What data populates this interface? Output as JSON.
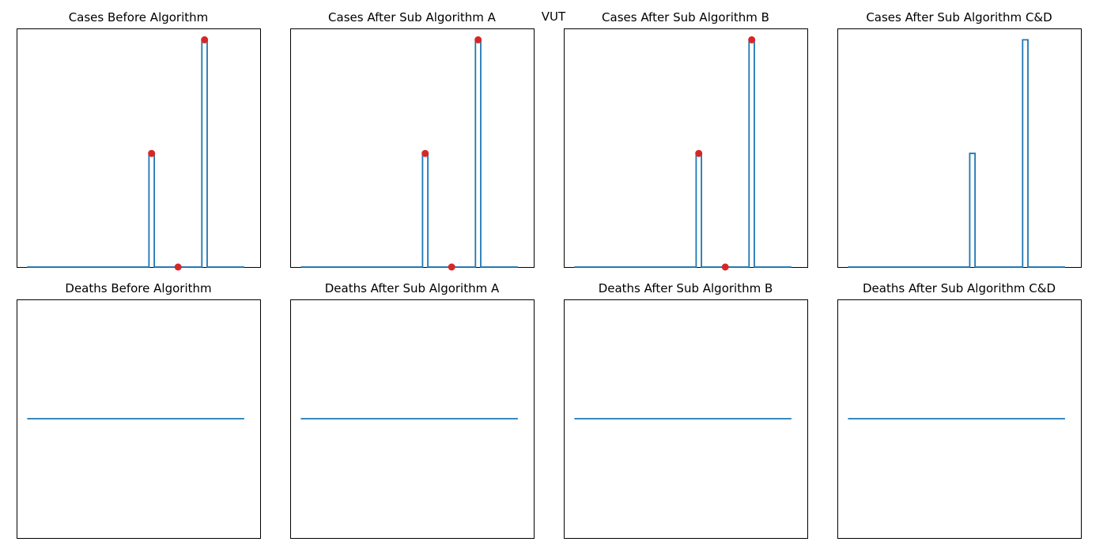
{
  "suptitle": "VUT",
  "colors": {
    "line": "#1f77b4",
    "marker": "#d62728",
    "frame": "#000000"
  },
  "chart_data": [
    {
      "type": "line",
      "title": "Cases Before Algorithm",
      "ylim": [
        0,
        1.05
      ],
      "xlim": [
        -2,
        44
      ],
      "x": [
        0,
        23,
        23,
        24,
        24,
        33,
        33,
        34,
        34,
        41
      ],
      "y": [
        0,
        0,
        0.5,
        0.5,
        0,
        0,
        1,
        1,
        0,
        0
      ],
      "markers": {
        "x": [
          23.5,
          28.5,
          33.5
        ],
        "y": [
          0.5,
          0,
          1
        ]
      }
    },
    {
      "type": "line",
      "title": "Cases After Sub Algorithm A",
      "ylim": [
        0,
        1.05
      ],
      "xlim": [
        -2,
        44
      ],
      "x": [
        0,
        23,
        23,
        24,
        24,
        33,
        33,
        34,
        34,
        41
      ],
      "y": [
        0,
        0,
        0.5,
        0.5,
        0,
        0,
        1,
        1,
        0,
        0
      ],
      "markers": {
        "x": [
          23.5,
          28.5,
          33.5
        ],
        "y": [
          0.5,
          0,
          1
        ]
      }
    },
    {
      "type": "line",
      "title": "Cases After Sub Algorithm B",
      "ylim": [
        0,
        1.05
      ],
      "xlim": [
        -2,
        44
      ],
      "x": [
        0,
        23,
        23,
        24,
        24,
        33,
        33,
        34,
        34,
        41
      ],
      "y": [
        0,
        0,
        0.5,
        0.5,
        0,
        0,
        1,
        1,
        0,
        0
      ],
      "markers": {
        "x": [
          23.5,
          28.5,
          33.5
        ],
        "y": [
          0.5,
          0,
          1
        ]
      }
    },
    {
      "type": "line",
      "title": "Cases After Sub Algorithm C&D",
      "ylim": [
        0,
        1.05
      ],
      "xlim": [
        -2,
        44
      ],
      "x": [
        0,
        23,
        23,
        24,
        24,
        33,
        33,
        34,
        34,
        41
      ],
      "y": [
        0,
        0,
        0.5,
        0.5,
        0,
        0,
        1,
        1,
        0,
        0
      ],
      "markers": {
        "x": [],
        "y": []
      }
    },
    {
      "type": "line",
      "title": "Deaths Before Algorithm",
      "ylim": [
        -0.055,
        0.055
      ],
      "xlim": [
        -2,
        44
      ],
      "x": [
        0,
        41
      ],
      "y": [
        0,
        0
      ],
      "markers": {
        "x": [],
        "y": []
      }
    },
    {
      "type": "line",
      "title": "Deaths After Sub Algorithm A",
      "ylim": [
        -0.055,
        0.055
      ],
      "xlim": [
        -2,
        44
      ],
      "x": [
        0,
        41
      ],
      "y": [
        0,
        0
      ],
      "markers": {
        "x": [],
        "y": []
      }
    },
    {
      "type": "line",
      "title": "Deaths After Sub Algorithm B",
      "ylim": [
        -0.055,
        0.055
      ],
      "xlim": [
        -2,
        44
      ],
      "x": [
        0,
        41
      ],
      "y": [
        0,
        0
      ],
      "markers": {
        "x": [],
        "y": []
      }
    },
    {
      "type": "line",
      "title": "Deaths After Sub Algorithm C&D",
      "ylim": [
        -0.055,
        0.055
      ],
      "xlim": [
        -2,
        44
      ],
      "x": [
        0,
        41
      ],
      "y": [
        0,
        0
      ],
      "markers": {
        "x": [],
        "y": []
      }
    }
  ]
}
